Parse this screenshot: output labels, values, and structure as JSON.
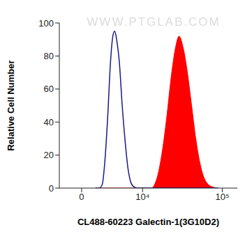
{
  "chart_data": {
    "type": "area",
    "x_label": "CL488-60223 Galectin-1(3G10D2)",
    "y_label": "Relative Cell Number",
    "annotations": [
      "WWW.PTGLAB.COM"
    ],
    "log": "x",
    "grid": false,
    "x": [
      1100,
      1470,
      1800,
      2100,
      2500,
      2840,
      3250,
      3500,
      3800,
      4300,
      4800,
      5400,
      6000,
      6600,
      7300,
      8500,
      10700,
      13400,
      14600,
      16600,
      18900,
      21400,
      24200,
      27300,
      30200,
      34000,
      38300,
      43100,
      48400,
      54400,
      61100,
      74000,
      89500
    ],
    "series": [
      {
        "type": "line",
        "color": "#1a1a8c",
        "values": [
          0,
          0,
          2,
          15,
          45,
          75,
          93,
          95,
          90,
          75,
          50,
          28,
          12,
          4,
          1,
          0,
          0,
          0,
          0,
          0,
          0,
          0,
          0,
          0,
          0,
          0,
          0,
          0,
          0,
          0,
          0,
          0,
          0
        ]
      },
      {
        "type": "area",
        "color": "#ff0000",
        "values": [
          0,
          0,
          0,
          0,
          0,
          0,
          0,
          0,
          0,
          0,
          0,
          0,
          0,
          0,
          0,
          0,
          0,
          0,
          2,
          10,
          25,
          45,
          68,
          85,
          92,
          85,
          70,
          50,
          30,
          15,
          6,
          1,
          0
        ]
      }
    ],
    "xlim": [
      -2000,
      150000
    ],
    "xticks": [
      0,
      {
        "value": 10000,
        "label": "10⁴"
      },
      {
        "value": 100000,
        "label": "10⁵"
      }
    ],
    "ylim": [
      0,
      100
    ],
    "yticks": [
      0,
      20,
      40,
      60,
      80,
      100
    ]
  }
}
